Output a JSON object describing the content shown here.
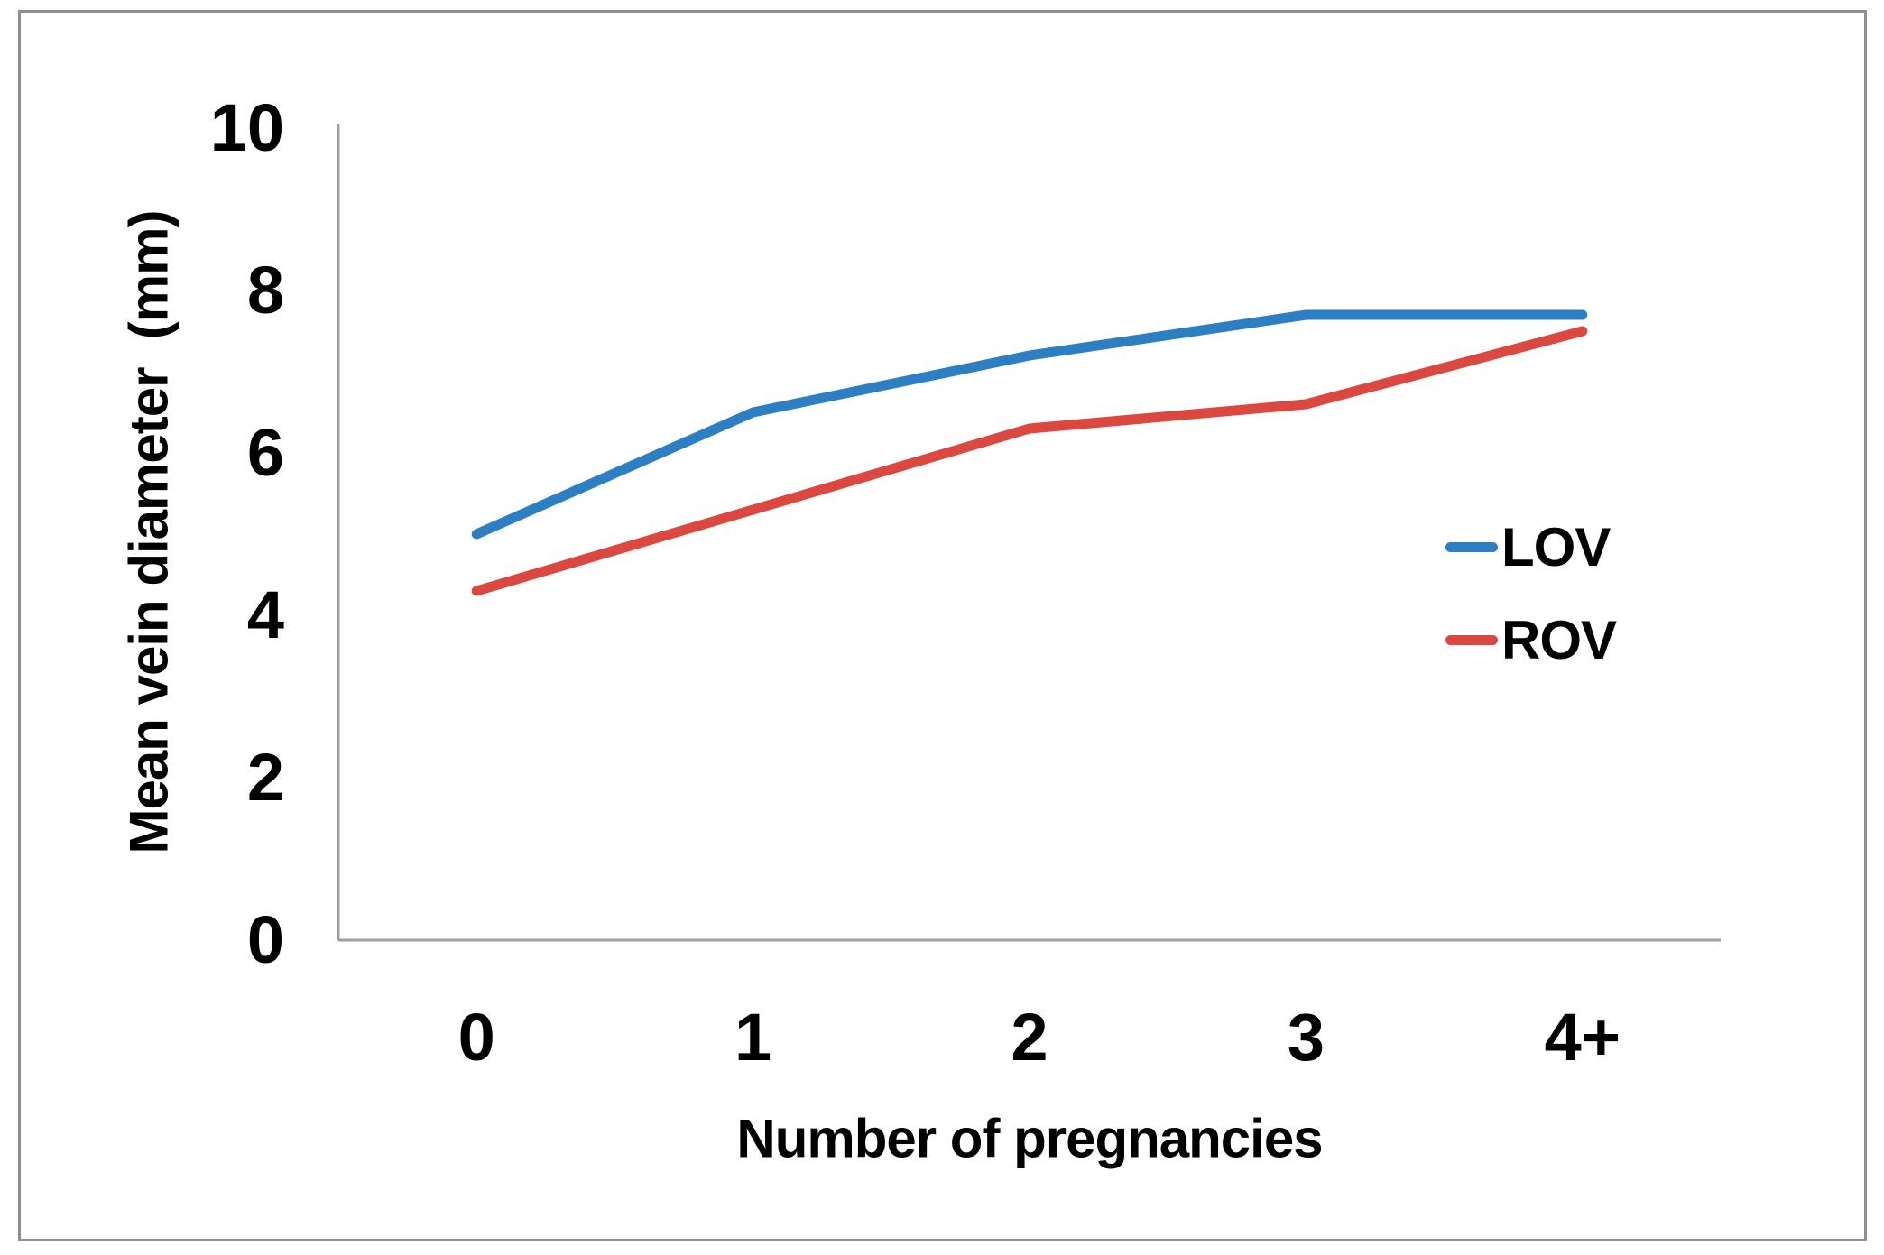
{
  "chart_data": {
    "type": "line",
    "categories": [
      "0",
      "1",
      "2",
      "3",
      "4+"
    ],
    "series": [
      {
        "name": "LOV",
        "color": "#2b7fc2",
        "values": [
          5.0,
          6.5,
          7.2,
          7.7,
          7.7
        ]
      },
      {
        "name": "ROV",
        "color": "#db4840",
        "values": [
          4.3,
          5.3,
          6.3,
          6.6,
          7.5
        ]
      }
    ],
    "title": "",
    "xlabel": "Number of pregnancies",
    "ylabel": "Mean vein diameter  (mm)",
    "ylim": [
      0,
      10
    ],
    "yticks": [
      "0",
      "2",
      "4",
      "6",
      "8",
      "10"
    ],
    "grid": false,
    "legend_position": "middle-right"
  },
  "colors": {
    "axis": "#9e9e9e",
    "figure_border": "#8f8f8f",
    "background": "#ffffff",
    "text": "#000000"
  }
}
